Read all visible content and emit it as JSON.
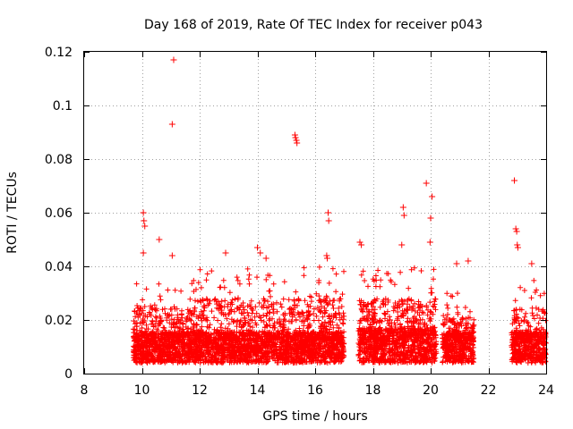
{
  "chart_data": {
    "type": "scatter",
    "title": "Day 168 of 2019, Rate Of TEC Index for receiver p043",
    "xlabel": "GPS time / hours",
    "ylabel": "ROTI / TECUs",
    "xlim": [
      8,
      24
    ],
    "ylim": [
      0,
      0.12
    ],
    "grid": true,
    "marker": "+",
    "marker_color": "#ff0000",
    "x_ticks": [
      8,
      10,
      12,
      14,
      16,
      18,
      20,
      22,
      24
    ],
    "x_tick_labels": [
      "8",
      "10",
      "12",
      "14",
      "16",
      "18",
      "20",
      "22",
      "24"
    ],
    "y_ticks": [
      0,
      0.02,
      0.04,
      0.06,
      0.08,
      0.1,
      0.12
    ],
    "y_tick_labels": [
      "0",
      "0.02",
      "0.04",
      "0.06",
      "0.08",
      "0.1",
      "0.12"
    ],
    "data_segments": [
      {
        "x_start": 9.7,
        "x_end": 12.0,
        "y_median": 0.012,
        "y_max_typical": 0.035
      },
      {
        "x_start": 12.0,
        "x_end": 17.0,
        "y_median": 0.012,
        "y_max_typical": 0.04
      },
      {
        "x_start": 17.5,
        "x_end": 20.2,
        "y_median": 0.013,
        "y_max_typical": 0.04
      },
      {
        "x_start": 20.4,
        "x_end": 21.5,
        "y_median": 0.012,
        "y_max_typical": 0.03
      },
      {
        "x_start": 22.8,
        "x_end": 24.0,
        "y_median": 0.012,
        "y_max_typical": 0.035
      }
    ],
    "outliers": [
      {
        "x": 11.1,
        "y": 0.117
      },
      {
        "x": 11.05,
        "y": 0.093
      },
      {
        "x": 10.05,
        "y": 0.06
      },
      {
        "x": 10.07,
        "y": 0.057
      },
      {
        "x": 10.1,
        "y": 0.055
      },
      {
        "x": 10.6,
        "y": 0.05
      },
      {
        "x": 10.05,
        "y": 0.045
      },
      {
        "x": 11.05,
        "y": 0.044
      },
      {
        "x": 15.3,
        "y": 0.089
      },
      {
        "x": 15.32,
        "y": 0.088
      },
      {
        "x": 15.35,
        "y": 0.087
      },
      {
        "x": 15.37,
        "y": 0.086
      },
      {
        "x": 16.45,
        "y": 0.06
      },
      {
        "x": 16.47,
        "y": 0.057
      },
      {
        "x": 16.4,
        "y": 0.044
      },
      {
        "x": 16.42,
        "y": 0.043
      },
      {
        "x": 14.0,
        "y": 0.047
      },
      {
        "x": 14.1,
        "y": 0.045
      },
      {
        "x": 14.3,
        "y": 0.043
      },
      {
        "x": 12.9,
        "y": 0.045
      },
      {
        "x": 17.55,
        "y": 0.049
      },
      {
        "x": 17.6,
        "y": 0.048
      },
      {
        "x": 19.05,
        "y": 0.062
      },
      {
        "x": 19.08,
        "y": 0.059
      },
      {
        "x": 19.0,
        "y": 0.048
      },
      {
        "x": 19.85,
        "y": 0.071
      },
      {
        "x": 20.05,
        "y": 0.066
      },
      {
        "x": 20.0,
        "y": 0.058
      },
      {
        "x": 19.98,
        "y": 0.049
      },
      {
        "x": 20.9,
        "y": 0.041
      },
      {
        "x": 21.3,
        "y": 0.042
      },
      {
        "x": 22.9,
        "y": 0.072
      },
      {
        "x": 22.95,
        "y": 0.054
      },
      {
        "x": 22.98,
        "y": 0.053
      },
      {
        "x": 23.0,
        "y": 0.048
      },
      {
        "x": 23.02,
        "y": 0.047
      },
      {
        "x": 23.5,
        "y": 0.041
      }
    ]
  }
}
